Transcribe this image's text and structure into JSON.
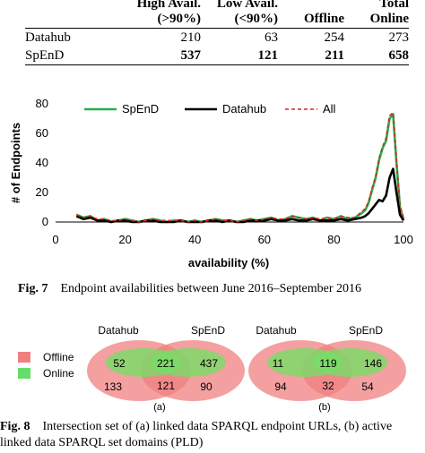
{
  "table": {
    "headers": [
      "",
      "High Avail.\n(>90%)",
      "Low Avail.\n(<90%)",
      "Offline",
      "Total\nOnline"
    ],
    "rows": [
      {
        "label": "Datahub",
        "values": [
          "210",
          "63",
          "254",
          "273"
        ],
        "bold": false
      },
      {
        "label": "SpEnD",
        "values": [
          "537",
          "121",
          "211",
          "658"
        ],
        "bold": true
      }
    ]
  },
  "chart_data": {
    "type": "line",
    "xlabel": "availability (%)",
    "ylabel": "# of Endpoints",
    "xlim": [
      0,
      100
    ],
    "ylim": [
      0,
      80
    ],
    "x_ticks": [
      "0",
      "20",
      "40",
      "60",
      "80",
      "100"
    ],
    "y_ticks": [
      "0",
      "20",
      "40",
      "60",
      "80"
    ],
    "legend_position": "top",
    "x": [
      6,
      8,
      10,
      12,
      14,
      16,
      18,
      20,
      22,
      24,
      26,
      28,
      30,
      32,
      34,
      36,
      38,
      40,
      42,
      44,
      46,
      48,
      50,
      52,
      54,
      56,
      58,
      60,
      62,
      64,
      66,
      68,
      70,
      72,
      74,
      76,
      78,
      80,
      82,
      84,
      86,
      88,
      89,
      90,
      91,
      92,
      93,
      94,
      95,
      96,
      97,
      98,
      99,
      100
    ],
    "series": [
      {
        "name": "SpEnD",
        "color": "#22b14c",
        "style": "solid",
        "values": [
          5,
          3,
          4,
          1,
          2,
          0,
          1,
          2,
          1,
          0,
          1,
          2,
          1,
          0,
          1,
          1,
          0,
          1,
          0,
          1,
          2,
          1,
          1,
          0,
          1,
          2,
          1,
          2,
          3,
          1,
          2,
          4,
          3,
          2,
          3,
          1,
          3,
          2,
          4,
          2,
          3,
          6,
          8,
          13,
          22,
          30,
          42,
          50,
          55,
          70,
          73,
          40,
          10,
          2
        ]
      },
      {
        "name": "Datahub",
        "color": "#000000",
        "style": "solid",
        "values": [
          4,
          2,
          3,
          1,
          1,
          0,
          1,
          1,
          0,
          0,
          1,
          1,
          0,
          0,
          0,
          1,
          0,
          0,
          0,
          1,
          1,
          0,
          1,
          0,
          0,
          1,
          1,
          1,
          2,
          1,
          1,
          2,
          1,
          1,
          2,
          1,
          1,
          1,
          2,
          1,
          2,
          3,
          4,
          6,
          9,
          12,
          15,
          14,
          18,
          30,
          36,
          20,
          5,
          1
        ]
      },
      {
        "name": "All",
        "color": "#e02020",
        "style": "dashed",
        "values": [
          5,
          3,
          4,
          2,
          2,
          1,
          1,
          2,
          1,
          0,
          1,
          2,
          1,
          1,
          1,
          1,
          0,
          1,
          0,
          1,
          2,
          1,
          1,
          0,
          1,
          2,
          1,
          2,
          3,
          2,
          2,
          4,
          3,
          2,
          3,
          2,
          3,
          2,
          4,
          3,
          3,
          7,
          9,
          14,
          23,
          31,
          43,
          51,
          57,
          72,
          74,
          42,
          11,
          3
        ]
      }
    ]
  },
  "captions": {
    "fig7_label": "Fig. 7",
    "fig7_text": "Endpoint availabilities between June 2016–September 2016",
    "fig8_label": "Fig. 8",
    "fig8_text": "Intersection set of (a) linked data SPARQL endpoint URLs, (b) active linked data SPARQL set domains (PLD)"
  },
  "venn": {
    "legend": [
      {
        "label": "Offline",
        "color": "#f08080"
      },
      {
        "label": "Online",
        "color": "#66dd66"
      }
    ],
    "diagrams": [
      {
        "sub": "(a)",
        "left_label": "Datahub",
        "right_label": "SpEnD",
        "online_left": "52",
        "online_both": "221",
        "online_right": "437",
        "offline_left": "133",
        "offline_both": "121",
        "offline_right": "90"
      },
      {
        "sub": "(b)",
        "left_label": "Datahub",
        "right_label": "SpEnD",
        "online_left": "11",
        "online_both": "119",
        "online_right": "146",
        "offline_left": "94",
        "offline_both": "32",
        "offline_right": "54"
      }
    ]
  }
}
